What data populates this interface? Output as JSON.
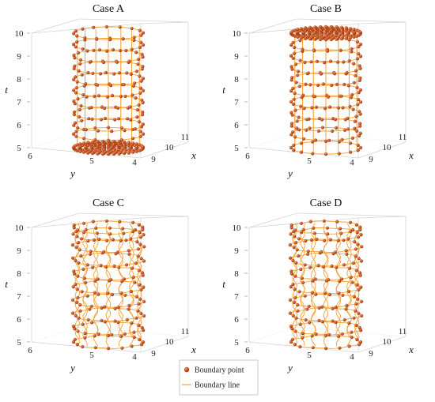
{
  "legend": {
    "point_label": "Boundary point",
    "line_label": "Boundary line"
  },
  "colors": {
    "point": "#b5441c",
    "point_highlight": "#e88a5a",
    "line": "#f5a235",
    "frame": "#d4d4d4",
    "grid": "#e4e4e4"
  },
  "chart_data": [
    {
      "type": "scatter3d",
      "title": "Case A",
      "xlabel": "x",
      "ylabel": "y",
      "zlabel": "t",
      "x_ticks": [
        "9",
        "10",
        "11"
      ],
      "y_ticks": [
        "6",
        "5",
        "4"
      ],
      "t_ticks": [
        "5",
        "6",
        "7",
        "8",
        "9",
        "10"
      ],
      "xlim": [
        9,
        11
      ],
      "ylim": [
        4,
        6
      ],
      "tlim": [
        5,
        10
      ],
      "boundary_layers_t": [
        5.6,
        6.0,
        6.5,
        7.0,
        7.5,
        8.0,
        8.5,
        9.0,
        9.5,
        10.0
      ],
      "dense_layers_t": [
        5.0
      ],
      "line_style": "straight"
    },
    {
      "type": "scatter3d",
      "title": "Case B",
      "xlabel": "x",
      "ylabel": "y",
      "zlabel": "t",
      "x_ticks": [
        "9",
        "10",
        "11"
      ],
      "y_ticks": [
        "6",
        "5",
        "4"
      ],
      "t_ticks": [
        "5",
        "6",
        "7",
        "8",
        "9",
        "10"
      ],
      "xlim": [
        9,
        11
      ],
      "ylim": [
        4,
        6
      ],
      "tlim": [
        5,
        10
      ],
      "boundary_layers_t": [
        5.0,
        5.6,
        6.0,
        6.5,
        7.0,
        7.5,
        8.0,
        8.5,
        9.0,
        9.5
      ],
      "dense_layers_t": [
        10.0
      ],
      "line_style": "straight"
    },
    {
      "type": "scatter3d",
      "title": "Case C",
      "xlabel": "x",
      "ylabel": "y",
      "zlabel": "t",
      "x_ticks": [
        "9",
        "10",
        "11"
      ],
      "y_ticks": [
        "6",
        "5",
        "4"
      ],
      "t_ticks": [
        "5",
        "6",
        "7",
        "8",
        "9",
        "10"
      ],
      "xlim": [
        9,
        11
      ],
      "ylim": [
        4,
        6
      ],
      "tlim": [
        5,
        10
      ],
      "boundary_layers_t": [
        5.0,
        5.6,
        6.2,
        6.8,
        7.4,
        8.0,
        8.6,
        9.2,
        9.7,
        10.0
      ],
      "dense_layers_t": [],
      "line_style": "wavy"
    },
    {
      "type": "scatter3d",
      "title": "Case D",
      "xlabel": "x",
      "ylabel": "y",
      "zlabel": "t",
      "x_ticks": [
        "9",
        "10",
        "11"
      ],
      "y_ticks": [
        "6",
        "5",
        "4"
      ],
      "t_ticks": [
        "5",
        "6",
        "7",
        "8",
        "9",
        "10"
      ],
      "xlim": [
        9,
        11
      ],
      "ylim": [
        4,
        6
      ],
      "tlim": [
        5,
        10
      ],
      "boundary_layers_t": [
        5.0,
        5.6,
        6.2,
        6.8,
        7.4,
        8.0,
        8.6,
        9.2,
        9.7,
        10.0
      ],
      "dense_layers_t": [],
      "line_style": "wavy"
    }
  ]
}
